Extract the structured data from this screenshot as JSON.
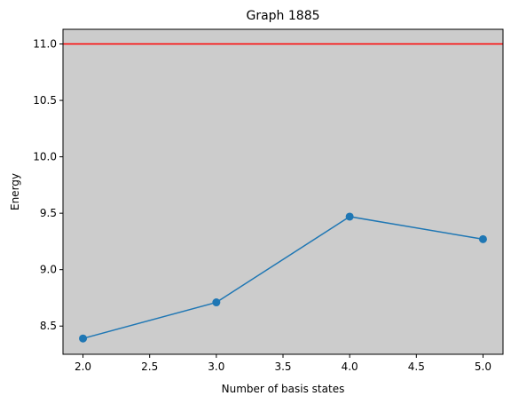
{
  "chart_data": {
    "type": "line",
    "title": "Graph 1885",
    "xlabel": "Number of basis states",
    "ylabel": "Energy",
    "xlim": [
      1.85,
      5.15
    ],
    "ylim": [
      8.25,
      11.13
    ],
    "x_ticks": [
      2.0,
      2.5,
      3.0,
      3.5,
      4.0,
      4.5,
      5.0
    ],
    "x_tick_labels": [
      "2.0",
      "2.5",
      "3.0",
      "3.5",
      "4.0",
      "4.5",
      "5.0"
    ],
    "y_ticks": [
      8.5,
      9.0,
      9.5,
      10.0,
      10.5,
      11.0
    ],
    "y_tick_labels": [
      "8.5",
      "9.0",
      "9.5",
      "10.0",
      "10.5",
      "11.0"
    ],
    "grid": false,
    "background_color": "#cccccc",
    "series": [
      {
        "x": [
          2.0,
          3.0,
          4.0,
          5.0
        ],
        "y": [
          8.39,
          8.71,
          9.47,
          9.27
        ],
        "color": "#1f77b4",
        "marker": "circle"
      }
    ],
    "reference_lines": [
      {
        "orientation": "horizontal",
        "y": 11.0,
        "color": "#ff0000"
      }
    ]
  }
}
